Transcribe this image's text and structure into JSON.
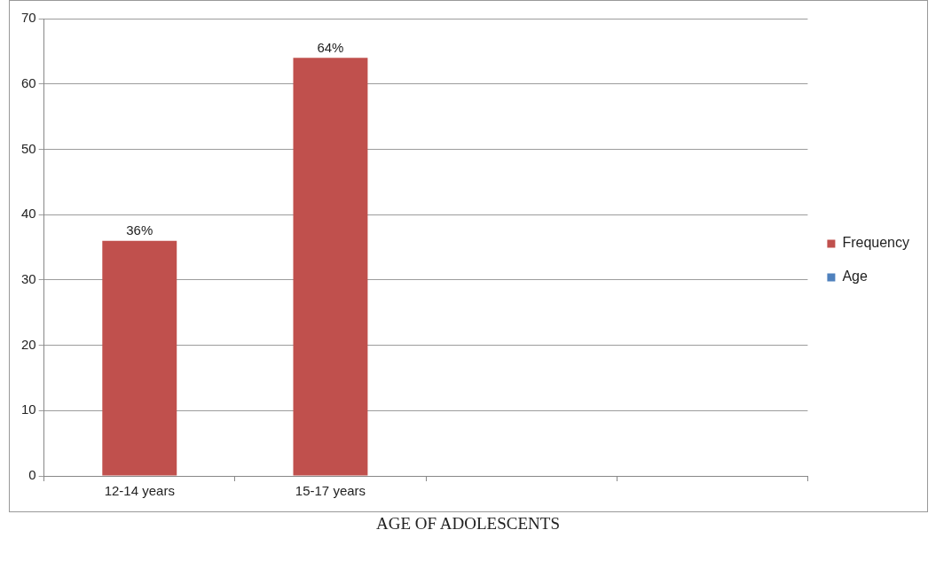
{
  "chart_data": {
    "type": "bar",
    "xlabel": "AGE OF ADOLESCENTS",
    "categories": [
      "12-14 years",
      "15-17 years",
      null,
      null
    ],
    "series": [
      {
        "name": "Frequency",
        "color": "#c0504d",
        "values": [
          36,
          64,
          null,
          null
        ],
        "value_labels": [
          "36%",
          "64%",
          null,
          null
        ]
      },
      {
        "name": "Age",
        "color": "#4f81bd",
        "values": [
          null,
          null,
          null,
          null
        ]
      }
    ],
    "ylim": [
      0,
      70
    ],
    "yticks": [
      0,
      10,
      20,
      30,
      40,
      50,
      60,
      70
    ],
    "grid": "y",
    "legend": "right"
  }
}
